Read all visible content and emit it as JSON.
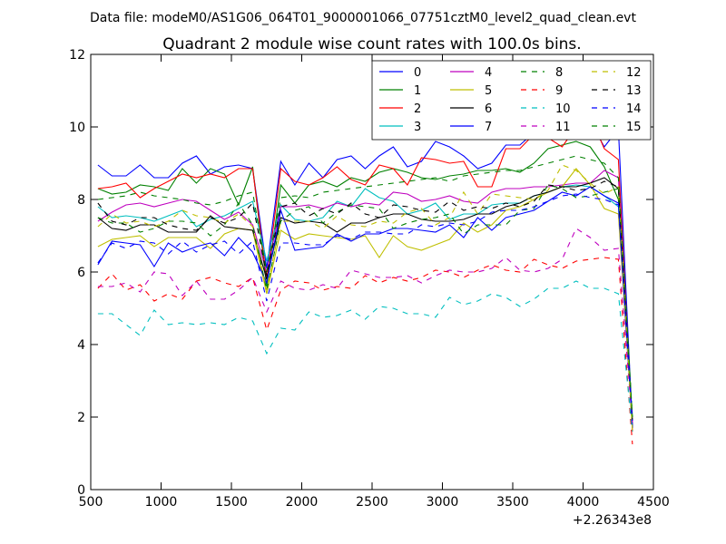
{
  "chart_data": {
    "type": "line",
    "suptitle": "Data file: modeM0/AS1G06_064T01_9000001066_07751cztM0_level2_quad_clean.evt",
    "title": "Quadrant 2 module wise count rates with 100.0s bins.",
    "xlabel": "",
    "ylabel": "",
    "x_offset_label": "+2.26343e8",
    "xlim": [
      500,
      4500
    ],
    "ylim": [
      0,
      12
    ],
    "xticks": [
      500,
      1000,
      1500,
      2000,
      2500,
      3000,
      3500,
      4000,
      4500
    ],
    "yticks": [
      0,
      2,
      4,
      6,
      8,
      10,
      12
    ],
    "grid": false,
    "legend": {
      "placement": "top-right",
      "columns": 4
    },
    "x": [
      551,
      651,
      751,
      851,
      951,
      1051,
      1151,
      1251,
      1351,
      1451,
      1551,
      1651,
      1751,
      1851,
      1951,
      2051,
      2151,
      2251,
      2351,
      2451,
      2551,
      2651,
      2751,
      2851,
      2951,
      3051,
      3151,
      3251,
      3351,
      3451,
      3551,
      3651,
      3751,
      3851,
      3951,
      4051,
      4151,
      4251,
      4351
    ],
    "series": [
      {
        "name": "0",
        "color": "#0000ff",
        "dash": "solid",
        "values": [
          8.95,
          8.65,
          8.65,
          8.95,
          8.6,
          8.6,
          9.0,
          9.2,
          8.7,
          8.9,
          8.95,
          8.85,
          6.1,
          9.05,
          8.4,
          9.0,
          8.6,
          9.1,
          9.2,
          8.85,
          9.2,
          9.45,
          8.9,
          9.05,
          9.6,
          9.45,
          9.2,
          8.85,
          9.0,
          9.5,
          9.5,
          9.85,
          9.7,
          9.8,
          10.1,
          10.15,
          9.45,
          9.95,
          1.7
        ]
      },
      {
        "name": "1",
        "color": "#008000",
        "dash": "solid",
        "values": [
          8.3,
          8.15,
          8.2,
          8.4,
          8.35,
          8.25,
          8.85,
          8.45,
          8.85,
          8.7,
          7.85,
          8.9,
          5.6,
          8.4,
          7.9,
          8.4,
          8.5,
          8.35,
          8.6,
          8.5,
          8.75,
          8.85,
          8.75,
          8.6,
          8.55,
          8.65,
          8.7,
          8.8,
          8.8,
          8.85,
          8.75,
          9.0,
          9.4,
          9.5,
          9.6,
          9.45,
          8.9,
          8.0,
          1.9
        ]
      },
      {
        "name": "2",
        "color": "#ff0000",
        "dash": "solid",
        "values": [
          8.3,
          8.35,
          8.45,
          8.05,
          8.3,
          8.5,
          8.7,
          8.6,
          8.7,
          8.6,
          8.85,
          8.85,
          5.8,
          8.85,
          8.5,
          8.4,
          8.6,
          8.9,
          8.55,
          8.4,
          8.95,
          8.85,
          8.4,
          9.15,
          9.1,
          9.0,
          9.05,
          8.35,
          8.35,
          9.4,
          9.4,
          9.8,
          9.7,
          9.45,
          10.0,
          10.3,
          9.4,
          9.1,
          1.6
        ]
      },
      {
        "name": "3",
        "color": "#00bfbf",
        "dash": "solid",
        "values": [
          7.8,
          7.5,
          7.55,
          7.5,
          7.4,
          7.55,
          7.7,
          7.25,
          7.45,
          7.55,
          7.75,
          7.95,
          6.3,
          7.85,
          7.45,
          7.4,
          7.5,
          7.95,
          7.8,
          8.3,
          8.05,
          7.95,
          7.6,
          7.7,
          7.9,
          7.45,
          7.6,
          7.6,
          7.85,
          7.9,
          7.9,
          8.1,
          8.2,
          8.35,
          8.4,
          8.35,
          8.1,
          7.8,
          1.75
        ]
      },
      {
        "name": "4",
        "color": "#bf00bf",
        "dash": "solid",
        "values": [
          7.4,
          7.65,
          7.85,
          7.9,
          7.8,
          7.9,
          8.0,
          7.95,
          7.7,
          7.45,
          7.65,
          7.3,
          6.0,
          7.8,
          7.8,
          7.85,
          7.75,
          7.9,
          7.8,
          7.9,
          7.85,
          8.2,
          8.15,
          7.95,
          8.0,
          8.1,
          7.95,
          7.9,
          8.2,
          8.3,
          8.3,
          8.35,
          8.35,
          8.4,
          8.45,
          8.45,
          8.8,
          8.6,
          1.8
        ]
      },
      {
        "name": "5",
        "color": "#bfbf00",
        "dash": "solid",
        "values": [
          6.7,
          6.9,
          6.95,
          7.0,
          6.7,
          6.95,
          6.95,
          6.95,
          6.65,
          7.05,
          7.2,
          7.15,
          5.4,
          7.15,
          6.9,
          7.05,
          7.0,
          6.95,
          6.9,
          7.0,
          6.4,
          7.0,
          6.7,
          6.6,
          6.75,
          6.9,
          7.35,
          7.1,
          7.3,
          7.7,
          7.8,
          8.0,
          8.2,
          8.35,
          8.85,
          8.4,
          7.75,
          7.6,
          1.7
        ]
      },
      {
        "name": "6",
        "color": "#000000",
        "dash": "solid",
        "values": [
          7.5,
          7.2,
          7.15,
          7.3,
          7.3,
          7.1,
          7.1,
          7.1,
          7.55,
          7.25,
          7.2,
          7.15,
          5.8,
          7.5,
          7.35,
          7.4,
          7.35,
          7.1,
          7.35,
          7.35,
          7.5,
          7.6,
          7.6,
          7.45,
          7.4,
          7.4,
          7.45,
          7.6,
          7.6,
          7.8,
          7.9,
          8.1,
          8.2,
          8.35,
          8.35,
          8.45,
          8.6,
          8.3,
          1.7
        ]
      },
      {
        "name": "7",
        "color": "#0000ff",
        "dash": "solid",
        "values": [
          6.2,
          6.85,
          6.8,
          6.75,
          6.15,
          6.8,
          6.55,
          6.7,
          6.8,
          6.45,
          6.95,
          6.55,
          5.7,
          7.7,
          6.6,
          6.65,
          6.7,
          7.05,
          6.85,
          7.05,
          7.05,
          7.2,
          7.2,
          7.15,
          7.1,
          7.3,
          6.95,
          7.5,
          7.15,
          7.5,
          7.6,
          7.7,
          7.95,
          8.2,
          8.1,
          8.35,
          8.1,
          7.9,
          1.7
        ]
      },
      {
        "name": "8",
        "color": "#008000",
        "dash": "dashed",
        "values": [
          7.5,
          7.35,
          7.35,
          7.1,
          7.2,
          7.4,
          7.4,
          7.35,
          7.0,
          7.3,
          7.9,
          7.3,
          5.5,
          7.4,
          7.7,
          7.8,
          7.35,
          7.65,
          7.85,
          7.8,
          7.75,
          7.2,
          7.35,
          7.45,
          7.5,
          7.6,
          7.05,
          7.3,
          7.3,
          7.3,
          7.7,
          7.75,
          8.4,
          8.3,
          8.05,
          8.1,
          8.2,
          8.3,
          2.0
        ]
      },
      {
        "name": "9",
        "color": "#ff0000",
        "dash": "dashed",
        "values": [
          5.55,
          5.95,
          5.5,
          5.65,
          5.2,
          5.4,
          5.25,
          5.75,
          5.85,
          5.7,
          5.6,
          5.85,
          4.4,
          5.5,
          5.75,
          5.7,
          5.5,
          5.6,
          5.55,
          5.9,
          5.7,
          5.85,
          5.75,
          5.85,
          6.05,
          6.0,
          5.85,
          6.05,
          6.2,
          6.05,
          6.0,
          6.35,
          6.2,
          6.1,
          6.3,
          6.35,
          6.4,
          6.35,
          1.25
        ]
      },
      {
        "name": "10",
        "color": "#00bfbf",
        "dash": "dashed",
        "values": [
          4.85,
          4.85,
          4.55,
          4.25,
          4.95,
          4.55,
          4.6,
          4.55,
          4.6,
          4.55,
          4.75,
          4.65,
          3.75,
          4.45,
          4.4,
          4.9,
          4.75,
          4.8,
          4.95,
          4.7,
          5.05,
          5.0,
          4.85,
          4.85,
          4.75,
          5.3,
          5.1,
          5.2,
          5.4,
          5.3,
          5.05,
          5.25,
          5.55,
          5.55,
          5.75,
          5.55,
          5.55,
          5.4,
          1.6
        ]
      },
      {
        "name": "11",
        "color": "#bf00bf",
        "dash": "dashed",
        "values": [
          5.6,
          5.6,
          5.7,
          5.45,
          6.0,
          5.95,
          5.35,
          5.75,
          5.25,
          5.25,
          5.5,
          5.85,
          4.9,
          5.75,
          5.55,
          5.5,
          5.65,
          5.55,
          6.05,
          5.95,
          5.85,
          5.85,
          5.9,
          5.7,
          5.9,
          6.05,
          6.0,
          6.0,
          6.1,
          6.4,
          6.05,
          6.0,
          6.1,
          6.35,
          7.2,
          6.95,
          6.6,
          6.65,
          1.8
        ]
      },
      {
        "name": "12",
        "color": "#bfbf00",
        "dash": "dashed",
        "values": [
          7.25,
          7.6,
          7.35,
          7.4,
          7.25,
          7.4,
          7.7,
          7.55,
          7.5,
          7.35,
          7.6,
          7.25,
          5.5,
          7.4,
          7.4,
          7.4,
          7.2,
          7.55,
          7.3,
          7.25,
          7.4,
          7.35,
          7.65,
          7.75,
          7.3,
          7.5,
          8.2,
          7.6,
          8.15,
          8.1,
          8.05,
          8.0,
          8.25,
          8.95,
          8.8,
          8.45,
          8.15,
          8.35,
          1.6
        ]
      },
      {
        "name": "13",
        "color": "#000000",
        "dash": "dashed",
        "values": [
          7.9,
          7.4,
          7.3,
          7.5,
          7.5,
          7.3,
          7.2,
          7.15,
          7.5,
          7.35,
          7.5,
          7.9,
          5.9,
          7.8,
          7.9,
          7.55,
          7.75,
          7.6,
          7.9,
          7.6,
          7.5,
          7.85,
          7.8,
          7.7,
          7.65,
          7.95,
          7.7,
          7.8,
          7.75,
          7.9,
          7.8,
          7.95,
          8.4,
          8.35,
          8.25,
          8.3,
          8.5,
          8.35,
          1.9
        ]
      },
      {
        "name": "14",
        "color": "#0000ff",
        "dash": "dashed",
        "values": [
          6.25,
          6.8,
          6.65,
          6.85,
          6.8,
          6.5,
          6.85,
          6.55,
          6.75,
          6.85,
          6.5,
          6.85,
          5.2,
          6.8,
          6.8,
          6.75,
          6.75,
          7.0,
          6.9,
          7.1,
          7.1,
          7.05,
          7.05,
          7.3,
          7.25,
          7.35,
          7.3,
          7.4,
          7.65,
          7.7,
          7.7,
          7.8,
          7.95,
          8.1,
          8.15,
          8.05,
          8.0,
          7.85,
          1.9
        ]
      },
      {
        "name": "15",
        "color": "#008000",
        "dash": "dashed",
        "values": [
          8.0,
          8.05,
          8.1,
          8.2,
          8.1,
          8.05,
          8.0,
          7.9,
          7.85,
          7.95,
          8.1,
          8.2,
          6.0,
          8.05,
          8.1,
          8.05,
          8.2,
          8.25,
          8.3,
          8.35,
          8.4,
          8.45,
          8.5,
          8.55,
          8.6,
          8.5,
          8.65,
          8.7,
          8.75,
          8.8,
          8.8,
          8.9,
          9.0,
          9.1,
          9.2,
          9.1,
          9.0,
          8.6,
          2.0
        ]
      }
    ]
  }
}
